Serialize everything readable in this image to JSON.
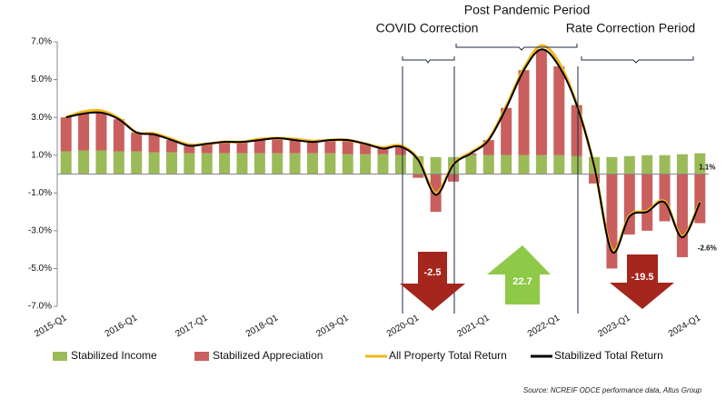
{
  "chart_data": {
    "type": "stacked_bar_line",
    "categories": [
      "2015-Q1",
      null,
      null,
      null,
      "2016-Q1",
      null,
      null,
      null,
      "2017-Q1",
      null,
      null,
      null,
      "2018-Q1",
      null,
      null,
      null,
      "2019-Q1",
      null,
      null,
      null,
      "2020-Q1",
      null,
      null,
      null,
      "2021-Q1",
      null,
      null,
      null,
      "2022-Q1",
      null,
      null,
      null,
      "2023-Q1",
      null,
      null,
      null,
      "2024-Q1"
    ],
    "series": [
      {
        "name": "Stabilized Income",
        "kind": "bar",
        "color": "#9bbb59",
        "values": [
          1.2,
          1.25,
          1.25,
          1.2,
          1.2,
          1.15,
          1.15,
          1.1,
          1.1,
          1.1,
          1.1,
          1.1,
          1.1,
          1.1,
          1.1,
          1.1,
          1.05,
          1.05,
          1.05,
          1.0,
          0.95,
          0.9,
          0.9,
          1.0,
          1.0,
          1.0,
          1.0,
          1.0,
          1.0,
          0.95,
          0.9,
          0.9,
          0.95,
          1.0,
          1.0,
          1.05,
          1.1
        ],
        "value_labels": [
          null,
          null,
          null,
          null,
          null,
          null,
          null,
          null,
          null,
          null,
          null,
          null,
          null,
          null,
          null,
          null,
          null,
          null,
          null,
          null,
          null,
          null,
          null,
          null,
          null,
          null,
          null,
          null,
          null,
          null,
          null,
          null,
          null,
          null,
          null,
          null,
          "1.1%"
        ]
      },
      {
        "name": "Stabilized Appreciation",
        "kind": "bar",
        "color": "#c9605e",
        "values": [
          1.8,
          1.95,
          2.0,
          1.7,
          1.0,
          0.95,
          0.65,
          0.4,
          0.5,
          0.6,
          0.6,
          0.7,
          0.8,
          0.7,
          0.6,
          0.7,
          0.75,
          0.55,
          0.3,
          0.45,
          -0.2,
          -2.0,
          -0.4,
          0.1,
          0.8,
          2.5,
          4.5,
          5.6,
          4.7,
          2.7,
          -0.5,
          -5.0,
          -3.2,
          -3.0,
          -2.5,
          -4.4,
          -2.6
        ],
        "value_labels": [
          null,
          null,
          null,
          null,
          null,
          null,
          null,
          null,
          null,
          null,
          null,
          null,
          null,
          null,
          null,
          null,
          null,
          null,
          null,
          null,
          null,
          null,
          null,
          null,
          null,
          null,
          null,
          null,
          null,
          null,
          null,
          null,
          null,
          null,
          null,
          null,
          "-2.6%"
        ]
      },
      {
        "name": "All Property Total Return",
        "kind": "line",
        "color": "#f2b619",
        "values": [
          3.0,
          3.3,
          3.35,
          2.95,
          2.2,
          2.15,
          1.85,
          1.55,
          1.6,
          1.7,
          1.7,
          1.85,
          1.9,
          1.85,
          1.75,
          1.8,
          1.8,
          1.6,
          1.4,
          1.5,
          0.8,
          -1.0,
          0.55,
          1.15,
          1.85,
          3.6,
          5.6,
          6.8,
          5.9,
          3.7,
          0.4,
          -4.0,
          -2.2,
          -1.95,
          -1.45,
          -3.3,
          -1.45
        ]
      },
      {
        "name": "Stabilized Total Return",
        "kind": "line",
        "color": "#000000",
        "values": [
          3.0,
          3.2,
          3.25,
          2.9,
          2.2,
          2.1,
          1.8,
          1.5,
          1.6,
          1.7,
          1.7,
          1.8,
          1.9,
          1.8,
          1.7,
          1.8,
          1.8,
          1.6,
          1.35,
          1.45,
          0.75,
          -1.1,
          0.5,
          1.1,
          1.8,
          3.5,
          5.5,
          6.6,
          5.7,
          3.65,
          0.4,
          -4.1,
          -2.25,
          -2.0,
          -1.5,
          -3.35,
          -1.5
        ]
      }
    ],
    "ylim": [
      -7,
      7
    ],
    "yticks": [
      {
        "value": -7,
        "label": "-7.0%"
      },
      {
        "value": -5,
        "label": "-5.0%"
      },
      {
        "value": -3,
        "label": "-3.0%"
      },
      {
        "value": -1,
        "label": "-1.0%"
      },
      {
        "value": 1,
        "label": "1.0%"
      },
      {
        "value": 3,
        "label": "3.0%"
      },
      {
        "value": 5,
        "label": "5.0%"
      },
      {
        "value": 7,
        "label": "7.0%"
      }
    ],
    "periods": [
      "COVID Correction",
      "Post Pandemic Period",
      "Rate Correction Period"
    ],
    "arrows": [
      "-2.5",
      "22.7",
      "-19.5"
    ],
    "source": "Source: NCREIF ODCE performance data, Altus Group"
  }
}
